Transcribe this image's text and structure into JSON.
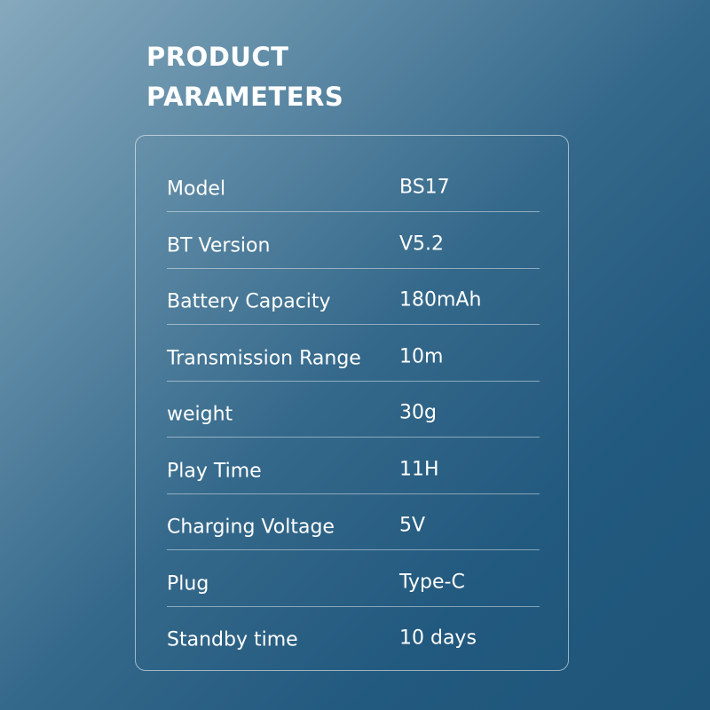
{
  "title_line1": "PRODUCT",
  "title_line2": "PARAMETERS",
  "rows": [
    {
      "label": "Model",
      "value": "BS17"
    },
    {
      "label": "BT Version",
      "value": "V5.2"
    },
    {
      "label": "Battery Capacity",
      "value": "180mAh"
    },
    {
      "label": "Transmission Range",
      "value": "10m"
    },
    {
      "label": "weight",
      "value": "30g"
    },
    {
      "label": "Play Time",
      "value": "11H"
    },
    {
      "label": "Charging Voltage",
      "value": "5V"
    },
    {
      "label": "Plug",
      "value": "Type-C"
    },
    {
      "label": "Standby time",
      "value": "10 days"
    }
  ]
}
